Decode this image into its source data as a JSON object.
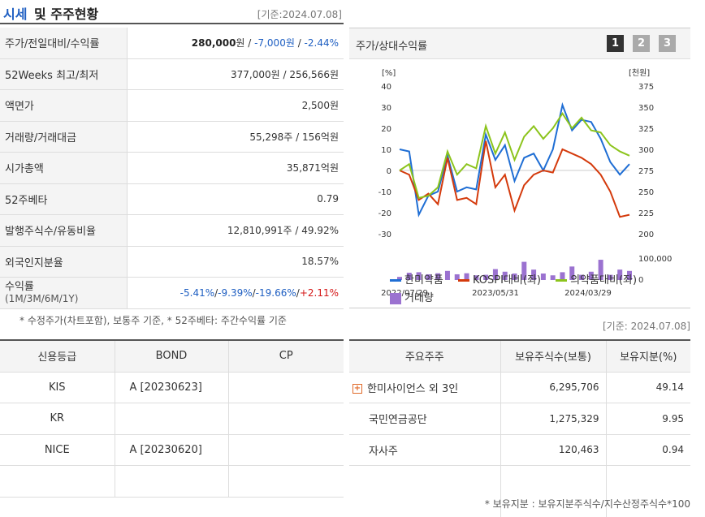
{
  "header": {
    "title_blue": "시세",
    "title_rest": "및 주주현황",
    "date": "[기준:2024.07.08]"
  },
  "info": {
    "price_label": "주가/전일대비/수익률",
    "price": "280,000",
    "price_unit": "원",
    "change": "-7,000원",
    "change_pct": "-2.44%",
    "w52_label": "52Weeks 최고/최저",
    "w52_value": "377,000원 / 256,566원",
    "par_label": "액면가",
    "par_value": "2,500원",
    "volume_label": "거래량/거래대금",
    "volume_value": "55,298주 / 156억원",
    "mcap_label": "시가총액",
    "mcap_value": "35,871억원",
    "beta_label": "52주베타",
    "beta_value": "0.79",
    "shares_label": "발행주식수/유동비율",
    "shares_value": "12,810,991주 / 49.92%",
    "foreign_label": "외국인지분율",
    "foreign_value": "18.57%",
    "returns_label": "수익률",
    "returns_sub": "(1M/3M/6M/1Y)",
    "ret_1m": "-5.41%",
    "ret_3m": "-9.39%",
    "ret_6m": "-19.66%",
    "ret_1y": "+2.11%",
    "sep": "/ "
  },
  "note1": "* 수정주가(차트포함), 보통주 기준, * 52주베타: 주간수익률 기준",
  "chart_panel": {
    "title": "주가/상대수익률",
    "pages": [
      "1",
      "2",
      "3"
    ]
  },
  "chart_data": {
    "type": "line",
    "y_left_unit": "[%]",
    "y_right_unit": "[천원]",
    "y_left_ticks": [
      "40",
      "30",
      "20",
      "10",
      "0",
      "-10",
      "-20",
      "-30"
    ],
    "y_right_ticks": [
      "375",
      "350",
      "325",
      "300",
      "275",
      "250",
      "225",
      "200"
    ],
    "vol_ticks": [
      "100,000",
      "0"
    ],
    "x_ticks": [
      "2022/07/29",
      "2023/05/31",
      "2024/03/29"
    ],
    "ylim": [
      -30,
      40
    ],
    "series": [
      {
        "name": "한미약품",
        "color": "#1f6ed4",
        "values": [
          10,
          9,
          -21,
          -12,
          -10,
          7,
          -10,
          -8,
          -9,
          17,
          5,
          12,
          -5,
          6,
          8,
          0,
          10,
          31,
          19,
          24,
          23,
          15,
          4,
          -2,
          3
        ]
      },
      {
        "name": "KOSPI대비(좌)",
        "color": "#d43a0c",
        "values": [
          0,
          -2,
          -14,
          -11,
          -16,
          6,
          -14,
          -13,
          -16,
          14,
          -8,
          -2,
          -19,
          -7,
          -2,
          0,
          -1,
          10,
          8,
          6,
          3,
          -2,
          -10,
          -22,
          -21
        ]
      },
      {
        "name": "의약품대비(좌)",
        "color": "#8cc41c",
        "values": [
          0,
          3,
          -13,
          -12,
          -8,
          9,
          -2,
          3,
          1,
          21,
          8,
          18,
          5,
          16,
          21,
          15,
          20,
          27,
          20,
          25,
          19,
          18,
          12,
          9,
          7
        ]
      }
    ],
    "volume": {
      "name": "거래량",
      "color": "#9b72d0",
      "values": [
        12,
        28,
        30,
        22,
        26,
        35,
        22,
        26,
        18,
        20,
        42,
        32,
        25,
        70,
        40,
        25,
        18,
        30,
        52,
        20,
        32,
        78,
        20,
        40,
        35
      ]
    }
  },
  "date2": "[기준: 2024.07.08]",
  "credit": {
    "headers": [
      "신용등급",
      "BOND",
      "CP"
    ],
    "rows": [
      {
        "agency": "KIS",
        "bond": "A  [20230623]",
        "cp": ""
      },
      {
        "agency": "KR",
        "bond": "",
        "cp": ""
      },
      {
        "agency": "NICE",
        "bond": "A  [20230620]",
        "cp": ""
      },
      {
        "agency": "",
        "bond": "",
        "cp": ""
      }
    ]
  },
  "holders": {
    "headers": [
      "주요주주",
      "보유주식수(보통)",
      "보유지분(%)"
    ],
    "rows": [
      {
        "name": "한미사이언스 외 3인",
        "shares": "6,295,706",
        "pct": "49.14"
      },
      {
        "name": "국민연금공단",
        "shares": "1,275,329",
        "pct": "9.95"
      },
      {
        "name": "자사주",
        "shares": "120,463",
        "pct": "0.94"
      }
    ]
  },
  "note2": "* 보유지분 : 보유지분주식수/지수산정주식수*100"
}
